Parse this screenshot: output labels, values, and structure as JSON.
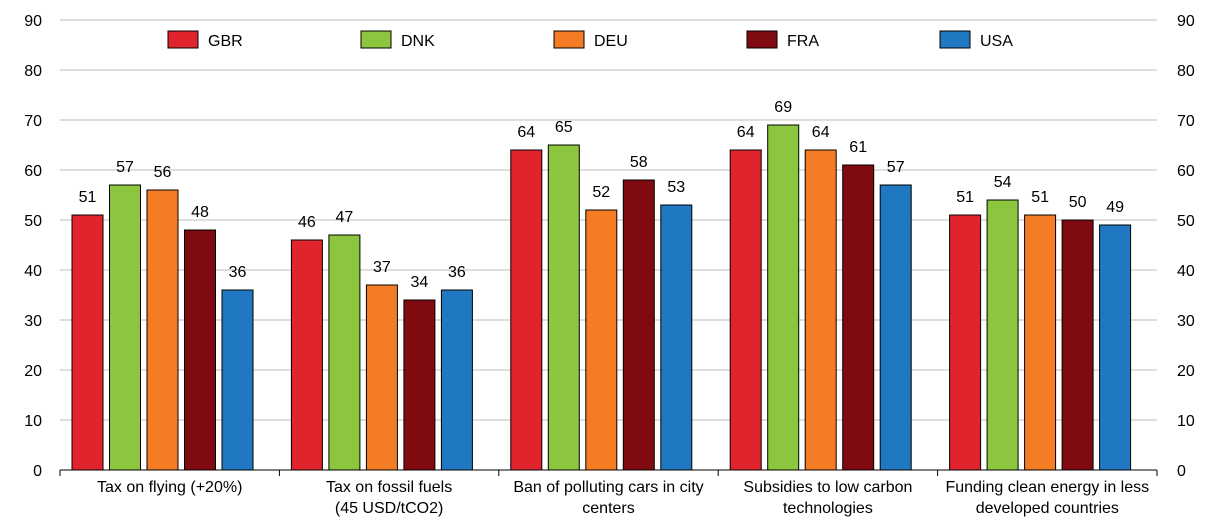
{
  "chart_data": {
    "type": "bar",
    "categories": [
      [
        "Tax on flying (+20%)"
      ],
      [
        "Tax on fossil fuels",
        "(45 USD/tCO2)"
      ],
      [
        "Ban of polluting cars in city",
        "centers"
      ],
      [
        "Subsidies to low carbon",
        "technologies"
      ],
      [
        "Funding clean energy in less",
        "developed countries"
      ]
    ],
    "series": [
      {
        "name": "GBR",
        "color": "#e0232c",
        "values": [
          51,
          46,
          64,
          64,
          51
        ]
      },
      {
        "name": "DNK",
        "color": "#8cc63e",
        "values": [
          57,
          47,
          65,
          69,
          54
        ]
      },
      {
        "name": "DEU",
        "color": "#f47c25",
        "values": [
          56,
          37,
          52,
          64,
          51
        ]
      },
      {
        "name": "FRA",
        "color": "#7f0a10",
        "values": [
          48,
          34,
          58,
          61,
          50
        ]
      },
      {
        "name": "USA",
        "color": "#1f78c1",
        "values": [
          36,
          36,
          53,
          57,
          49
        ]
      }
    ],
    "ylim": [
      0,
      90
    ],
    "yticks": [
      0,
      10,
      20,
      30,
      40,
      50,
      60,
      70,
      80,
      90
    ],
    "grid": true,
    "legend": "top",
    "title": "",
    "xlabel": "",
    "ylabel": ""
  }
}
